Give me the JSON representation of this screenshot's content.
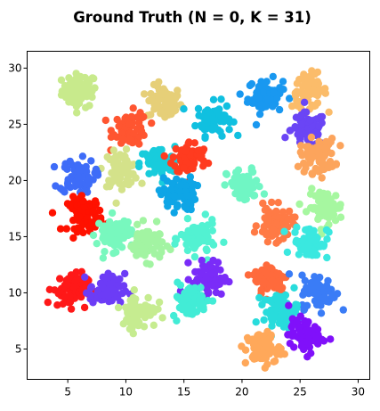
{
  "chart_data": {
    "type": "scatter",
    "title": "Ground Truth (N = 0, K = 31)",
    "xlabel": "",
    "ylabel": "",
    "xlim": [
      1.5,
      31.0
    ],
    "ylim": [
      2.3,
      31.5
    ],
    "xticks": [
      5,
      10,
      15,
      20,
      25,
      30
    ],
    "yticks": [
      5,
      10,
      15,
      20,
      25,
      30
    ],
    "grid": false,
    "legend": "none",
    "colormap": "rainbow",
    "clusters": [
      {
        "x": 6.0,
        "y": 28.0,
        "color": "#c8ea8c"
      },
      {
        "x": 13.3,
        "y": 26.9,
        "color": "#e6cf78"
      },
      {
        "x": 17.6,
        "y": 25.5,
        "color": "#10c0e0"
      },
      {
        "x": 22.0,
        "y": 27.5,
        "color": "#1998f0"
      },
      {
        "x": 25.8,
        "y": 28.0,
        "color": "#fbbc6a"
      },
      {
        "x": 25.7,
        "y": 24.5,
        "color": "#6a45f5"
      },
      {
        "x": 10.4,
        "y": 24.6,
        "color": "#ff5530"
      },
      {
        "x": 9.6,
        "y": 21.0,
        "color": "#d4e28a"
      },
      {
        "x": 12.7,
        "y": 21.5,
        "color": "#18ccdc"
      },
      {
        "x": 15.5,
        "y": 22.0,
        "color": "#ff3b1f"
      },
      {
        "x": 5.8,
        "y": 20.4,
        "color": "#3e6cf8"
      },
      {
        "x": 14.5,
        "y": 18.8,
        "color": "#0ea5e6"
      },
      {
        "x": 20.2,
        "y": 19.5,
        "color": "#70f6c4"
      },
      {
        "x": 26.5,
        "y": 22.2,
        "color": "#fca45c"
      },
      {
        "x": 27.2,
        "y": 17.6,
        "color": "#a6f7a0"
      },
      {
        "x": 6.5,
        "y": 17.0,
        "color": "#ff1100"
      },
      {
        "x": 9.0,
        "y": 15.3,
        "color": "#78f8be"
      },
      {
        "x": 11.8,
        "y": 14.4,
        "color": "#a2f4a2"
      },
      {
        "x": 16.2,
        "y": 14.8,
        "color": "#52f2d2"
      },
      {
        "x": 22.9,
        "y": 16.1,
        "color": "#ff7a45"
      },
      {
        "x": 25.9,
        "y": 14.5,
        "color": "#3ae8e0"
      },
      {
        "x": 5.2,
        "y": 10.3,
        "color": "#ff1818"
      },
      {
        "x": 8.4,
        "y": 10.2,
        "color": "#6c3cf6"
      },
      {
        "x": 17.2,
        "y": 11.3,
        "color": "#7a2cf8"
      },
      {
        "x": 22.5,
        "y": 11.2,
        "color": "#ff6a3c"
      },
      {
        "x": 26.6,
        "y": 10.1,
        "color": "#3a7cf6"
      },
      {
        "x": 11.1,
        "y": 8.4,
        "color": "#c6ec90"
      },
      {
        "x": 15.5,
        "y": 9.3,
        "color": "#42ecd6"
      },
      {
        "x": 23.3,
        "y": 8.4,
        "color": "#28dcdc"
      },
      {
        "x": 21.8,
        "y": 5.0,
        "color": "#ffa85a"
      },
      {
        "x": 25.5,
        "y": 6.2,
        "color": "#8010fa"
      }
    ]
  }
}
